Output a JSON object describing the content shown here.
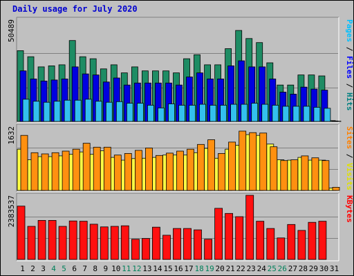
{
  "chart_data": [
    {
      "type": "bar",
      "title": "Daily usage for July 2020",
      "ymax_label": "50489",
      "ylim": [
        0,
        50489
      ],
      "categories": [
        "1",
        "2",
        "3",
        "4",
        "5",
        "6",
        "7",
        "8",
        "9",
        "10",
        "11",
        "12",
        "13",
        "14",
        "15",
        "16",
        "17",
        "18",
        "19",
        "20",
        "21",
        "22",
        "23",
        "24",
        "25",
        "26",
        "27",
        "28",
        "29",
        "30",
        "31"
      ],
      "weekend_days": [
        "4",
        "5",
        "11",
        "12",
        "18",
        "19",
        "25",
        "26"
      ],
      "grid": true,
      "legend": [
        {
          "label": "Hits",
          "color": "#008080"
        },
        {
          "label": "Files",
          "color": "#0000ff"
        },
        {
          "label": "Pages",
          "color": "#00c0ff"
        }
      ],
      "separator": " / ",
      "series": [
        {
          "name": "Hits",
          "color": "#1e8c64",
          "values": [
            35000,
            32000,
            27000,
            27500,
            28000,
            40000,
            32000,
            31000,
            26000,
            28000,
            24000,
            27000,
            25000,
            25000,
            25000,
            24000,
            31000,
            33000,
            28000,
            28000,
            36000,
            45000,
            41000,
            39000,
            29000,
            18000,
            18000,
            23000,
            23000,
            22500,
            400
          ]
        },
        {
          "name": "Files",
          "color": "#0000e0",
          "values": [
            25000,
            21000,
            20000,
            20500,
            21000,
            27000,
            23500,
            23000,
            19500,
            21500,
            18000,
            19000,
            19000,
            19000,
            19000,
            18000,
            22000,
            24000,
            21000,
            21000,
            27500,
            30000,
            27000,
            27000,
            21000,
            14500,
            13500,
            17000,
            16000,
            15500,
            250
          ]
        },
        {
          "name": "Pages",
          "color": "#33c0ee",
          "values": [
            11000,
            10000,
            9500,
            10000,
            10500,
            10500,
            11000,
            10000,
            9500,
            9800,
            9000,
            9000,
            8000,
            6700,
            8700,
            8000,
            8000,
            8500,
            8000,
            8000,
            8500,
            8500,
            9000,
            8500,
            8000,
            7500,
            7500,
            7500,
            7000,
            6500,
            150
          ]
        }
      ]
    },
    {
      "type": "bar",
      "ymax_label": "1632",
      "ylim": [
        0,
        1632
      ],
      "grid": true,
      "legend": [
        {
          "label": "Visits",
          "color": "#e0e000"
        },
        {
          "label": "Sites",
          "color": "#ff8000"
        }
      ],
      "series": [
        {
          "name": "Visits",
          "color": "#ffff44",
          "values": [
            1050,
            780,
            860,
            860,
            880,
            920,
            980,
            920,
            1010,
            840,
            770,
            810,
            820,
            840,
            900,
            900,
            900,
            960,
            1070,
            820,
            1050,
            1150,
            1420,
            1400,
            1180,
            780,
            770,
            840,
            770,
            770,
            60
          ]
        },
        {
          "name": "Sites",
          "color": "#ff9010",
          "values": [
            1400,
            960,
            930,
            960,
            1000,
            1050,
            1200,
            1100,
            1100,
            900,
            940,
            1020,
            1080,
            890,
            950,
            1000,
            1050,
            1170,
            1290,
            940,
            1230,
            1510,
            1470,
            1460,
            1110,
            760,
            780,
            880,
            830,
            760,
            80
          ]
        }
      ]
    },
    {
      "type": "bar",
      "ymax_label": "2383537",
      "ylim": [
        0,
        2383537
      ],
      "grid": true,
      "legend": [
        {
          "label": "KBytes",
          "color": "#ff0000"
        }
      ],
      "series": [
        {
          "name": "KBytes",
          "color": "#ff1010",
          "values": [
            1980000,
            1230000,
            1450000,
            1450000,
            1230000,
            1430000,
            1420000,
            1310000,
            1210000,
            1230000,
            1250000,
            750000,
            780000,
            1200000,
            900000,
            1150000,
            1150000,
            1100000,
            750000,
            1900000,
            1710000,
            1590000,
            2383537,
            1420000,
            1150000,
            800000,
            1300000,
            1080000,
            1380000,
            1420000,
            0
          ]
        }
      ]
    }
  ]
}
